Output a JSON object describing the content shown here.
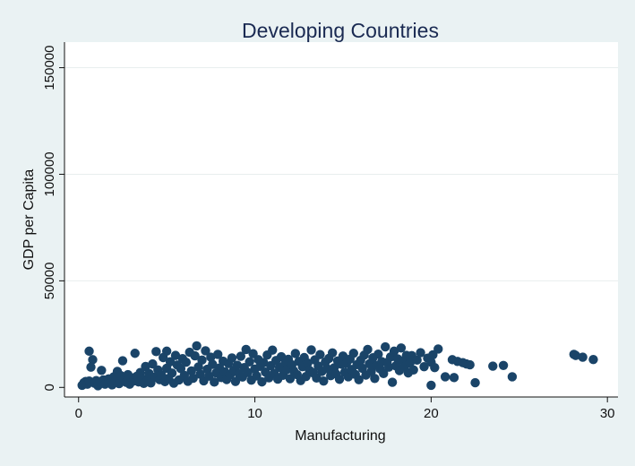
{
  "chart_data": {
    "type": "scatter",
    "title": "Developing Countries",
    "xlabel": "Manufacturing",
    "ylabel": "GDP per Capita",
    "xlim": [
      -0.8,
      30.6
    ],
    "ylim": [
      -4500,
      162000
    ],
    "xticks": [
      0,
      10,
      20,
      30
    ],
    "yticks": [
      0,
      50000,
      100000,
      150000
    ],
    "grid": "horizontal",
    "legend": "none",
    "colors": {
      "background": "#eaf2f3",
      "plot_area": "#ffffff",
      "marker": "#1a4468",
      "title": "#1a2a52",
      "grid": "#e8eeee"
    },
    "series": [
      {
        "values": [
          [
            0.2,
            1000
          ],
          [
            0.3,
            2200
          ],
          [
            0.4,
            2800
          ],
          [
            0.5,
            1500
          ],
          [
            0.6,
            3000
          ],
          [
            0.6,
            17000
          ],
          [
            0.7,
            9500
          ],
          [
            0.8,
            13000
          ],
          [
            0.9,
            2000
          ],
          [
            1.0,
            3200
          ],
          [
            1.1,
            800
          ],
          [
            1.2,
            2500
          ],
          [
            1.3,
            8000
          ],
          [
            1.4,
            3500
          ],
          [
            1.5,
            1500
          ],
          [
            1.6,
            2900
          ],
          [
            1.7,
            4000
          ],
          [
            1.8,
            2200
          ],
          [
            1.9,
            1200
          ],
          [
            2.0,
            5000
          ],
          [
            2.1,
            3000
          ],
          [
            2.2,
            7500
          ],
          [
            2.3,
            1800
          ],
          [
            2.4,
            5500
          ],
          [
            2.5,
            12500
          ],
          [
            2.6,
            3800
          ],
          [
            2.7,
            2400
          ],
          [
            2.8,
            6000
          ],
          [
            2.9,
            1500
          ],
          [
            3.0,
            4500
          ],
          [
            3.1,
            3000
          ],
          [
            3.2,
            16000
          ],
          [
            3.3,
            5200
          ],
          [
            3.4,
            2600
          ],
          [
            3.5,
            7000
          ],
          [
            3.6,
            4100
          ],
          [
            3.7,
            1900
          ],
          [
            3.8,
            9800
          ],
          [
            3.9,
            3300
          ],
          [
            4.0,
            6500
          ],
          [
            4.1,
            2100
          ],
          [
            4.2,
            11000
          ],
          [
            4.3,
            4700
          ],
          [
            4.4,
            16800
          ],
          [
            4.5,
            8200
          ],
          [
            4.6,
            3600
          ],
          [
            4.7,
            5800
          ],
          [
            4.8,
            14000
          ],
          [
            4.9,
            2700
          ],
          [
            5.0,
            17000
          ],
          [
            5.0,
            9000
          ],
          [
            5.1,
            4200
          ],
          [
            5.2,
            12000
          ],
          [
            5.3,
            6700
          ],
          [
            5.4,
            2000
          ],
          [
            5.5,
            15000
          ],
          [
            5.6,
            10500
          ],
          [
            5.7,
            3500
          ],
          [
            5.8,
            8800
          ],
          [
            5.9,
            13500
          ],
          [
            6.0,
            5600
          ],
          [
            6.1,
            11800
          ],
          [
            6.2,
            2900
          ],
          [
            6.3,
            16500
          ],
          [
            6.4,
            7700
          ],
          [
            6.5,
            4300
          ],
          [
            6.6,
            14800
          ],
          [
            6.7,
            19500
          ],
          [
            6.8,
            9600
          ],
          [
            6.9,
            6200
          ],
          [
            7.0,
            12800
          ],
          [
            7.1,
            3100
          ],
          [
            7.2,
            17200
          ],
          [
            7.3,
            8500
          ],
          [
            7.4,
            5300
          ],
          [
            7.5,
            14200
          ],
          [
            7.6,
            10800
          ],
          [
            7.7,
            2500
          ],
          [
            7.8,
            6800
          ],
          [
            7.9,
            15500
          ],
          [
            8.0,
            9100
          ],
          [
            8.1,
            4600
          ],
          [
            8.2,
            12300
          ],
          [
            8.3,
            7300
          ],
          [
            8.4,
            3700
          ],
          [
            8.5,
            11200
          ],
          [
            8.6,
            5900
          ],
          [
            8.7,
            13800
          ],
          [
            8.8,
            8100
          ],
          [
            8.9,
            2800
          ],
          [
            9.0,
            10400
          ],
          [
            9.1,
            6400
          ],
          [
            9.2,
            14600
          ],
          [
            9.3,
            4900
          ],
          [
            9.4,
            9300
          ],
          [
            9.5,
            17800
          ],
          [
            9.6,
            7000
          ],
          [
            9.7,
            12000
          ],
          [
            9.8,
            3400
          ],
          [
            9.9,
            15800
          ],
          [
            10.0,
            8600
          ],
          [
            10.1,
            5400
          ],
          [
            10.2,
            13000
          ],
          [
            10.3,
            9900
          ],
          [
            10.4,
            2600
          ],
          [
            10.5,
            11600
          ],
          [
            10.6,
            7200
          ],
          [
            10.7,
            15200
          ],
          [
            10.8,
            4500
          ],
          [
            10.9,
            10200
          ],
          [
            11.0,
            17500
          ],
          [
            11.1,
            6600
          ],
          [
            11.2,
            12600
          ],
          [
            11.3,
            3900
          ],
          [
            11.4,
            9400
          ],
          [
            11.5,
            14400
          ],
          [
            11.6,
            5700
          ],
          [
            11.7,
            11000
          ],
          [
            11.8,
            8300
          ],
          [
            11.9,
            13200
          ],
          [
            12.0,
            4100
          ],
          [
            12.1,
            10600
          ],
          [
            12.2,
            7800
          ],
          [
            12.3,
            15900
          ],
          [
            12.4,
            6000
          ],
          [
            12.5,
            12200
          ],
          [
            12.6,
            3200
          ],
          [
            12.7,
            9700
          ],
          [
            12.8,
            14000
          ],
          [
            12.9,
            5100
          ],
          [
            13.0,
            11400
          ],
          [
            13.1,
            8000
          ],
          [
            13.2,
            17600
          ],
          [
            13.3,
            6900
          ],
          [
            13.4,
            12900
          ],
          [
            13.5,
            4400
          ],
          [
            13.6,
            10000
          ],
          [
            13.7,
            15400
          ],
          [
            13.8,
            7500
          ],
          [
            13.9,
            3000
          ],
          [
            14.0,
            11900
          ],
          [
            14.1,
            8800
          ],
          [
            14.2,
            13600
          ],
          [
            14.3,
            5500
          ],
          [
            14.4,
            16200
          ],
          [
            14.5,
            9200
          ],
          [
            14.6,
            6300
          ],
          [
            14.7,
            12400
          ],
          [
            14.8,
            3800
          ],
          [
            14.9,
            10900
          ],
          [
            15.0,
            14700
          ],
          [
            15.1,
            7100
          ],
          [
            15.2,
            11300
          ],
          [
            15.3,
            5000
          ],
          [
            15.4,
            13300
          ],
          [
            15.5,
            8400
          ],
          [
            15.6,
            16000
          ],
          [
            15.7,
            6100
          ],
          [
            15.8,
            10700
          ],
          [
            15.9,
            3600
          ],
          [
            16.0,
            12700
          ],
          [
            16.1,
            9000
          ],
          [
            16.2,
            15100
          ],
          [
            16.3,
            5800
          ],
          [
            16.4,
            17800
          ],
          [
            16.5,
            11100
          ],
          [
            16.6,
            7400
          ],
          [
            16.7,
            13900
          ],
          [
            16.8,
            4200
          ],
          [
            16.9,
            10300
          ],
          [
            17.0,
            15600
          ],
          [
            17.1,
            8700
          ],
          [
            17.2,
            12100
          ],
          [
            17.3,
            6500
          ],
          [
            17.4,
            19000
          ],
          [
            17.5,
            11700
          ],
          [
            17.6,
            9500
          ],
          [
            17.7,
            14300
          ],
          [
            17.8,
            2400
          ],
          [
            17.9,
            17000
          ],
          [
            18.0,
            10100
          ],
          [
            18.1,
            13400
          ],
          [
            18.2,
            7900
          ],
          [
            18.3,
            18500
          ],
          [
            18.4,
            12500
          ],
          [
            18.5,
            9800
          ],
          [
            18.6,
            15000
          ],
          [
            18.7,
            6800
          ],
          [
            18.8,
            11500
          ],
          [
            18.9,
            14900
          ],
          [
            19.0,
            8200
          ],
          [
            19.2,
            12800
          ],
          [
            19.4,
            16300
          ],
          [
            19.6,
            9700
          ],
          [
            19.8,
            13700
          ],
          [
            20.0,
            11800
          ],
          [
            20.0,
            1000
          ],
          [
            20.1,
            15300
          ],
          [
            20.2,
            9300
          ],
          [
            20.4,
            18000
          ],
          [
            20.8,
            5000
          ],
          [
            21.2,
            13000
          ],
          [
            21.3,
            4600
          ],
          [
            21.5,
            12200
          ],
          [
            21.8,
            11600
          ],
          [
            22.0,
            11000
          ],
          [
            22.2,
            10600
          ],
          [
            22.5,
            2200
          ],
          [
            23.5,
            10000
          ],
          [
            24.1,
            10300
          ],
          [
            24.6,
            5000
          ],
          [
            28.1,
            15500
          ],
          [
            28.2,
            15000
          ],
          [
            28.6,
            14200
          ],
          [
            29.2,
            13100
          ]
        ]
      }
    ]
  }
}
